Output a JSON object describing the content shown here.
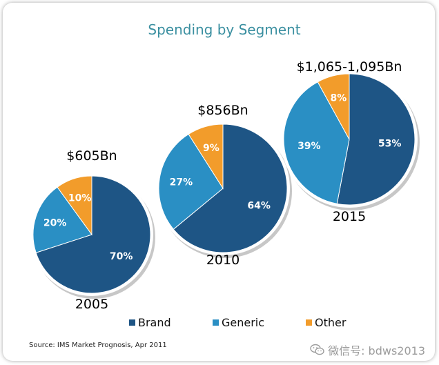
{
  "chart_data": {
    "type": "pie",
    "title": "Spending by Segment",
    "source": "Source: IMS Market Prognosis, Apr 2011",
    "legend": {
      "position": "bottom",
      "entries": [
        {
          "name": "Brand",
          "color": "#1e5585"
        },
        {
          "name": "Generic",
          "color": "#2a8fc4"
        },
        {
          "name": "Other",
          "color": "#f29c2b"
        }
      ]
    },
    "pies": [
      {
        "year": "2005",
        "total": "$605Bn",
        "slices": [
          {
            "name": "Brand",
            "value": 70,
            "label": "70%"
          },
          {
            "name": "Generic",
            "value": 20,
            "label": "20%"
          },
          {
            "name": "Other",
            "value": 10,
            "label": "10%"
          }
        ]
      },
      {
        "year": "2010",
        "total": "$856Bn",
        "slices": [
          {
            "name": "Brand",
            "value": 64,
            "label": "64%"
          },
          {
            "name": "Generic",
            "value": 27,
            "label": "27%"
          },
          {
            "name": "Other",
            "value": 9,
            "label": "9%"
          }
        ]
      },
      {
        "year": "2015",
        "total": "$1,065-1,095Bn",
        "slices": [
          {
            "name": "Brand",
            "value": 53,
            "label": "53%"
          },
          {
            "name": "Generic",
            "value": 39,
            "label": "39%"
          },
          {
            "name": "Other",
            "value": 8,
            "label": "8%"
          }
        ]
      }
    ]
  },
  "colors": {
    "title": "#3a8fa0",
    "text": "#000000",
    "label": "#ffffff"
  },
  "watermark": {
    "icon": "wechat-icon",
    "text": "微信号: bdws2013"
  }
}
